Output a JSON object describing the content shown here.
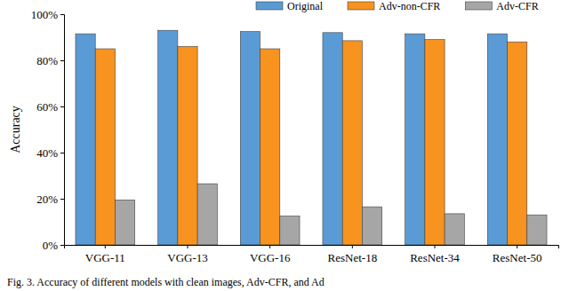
{
  "chart_data": {
    "type": "bar",
    "caption": "Fig. 3. Accuracy of different models with clean images, Adv-CFR, and Ad",
    "y_label": "Accuracy",
    "categories": [
      "VGG-11",
      "VGG-13",
      "VGG-16",
      "ResNet-18",
      "ResNet-34",
      "ResNet-50"
    ],
    "series": [
      {
        "name": "Original",
        "color": "#5b9bd5",
        "values": [
          91.5,
          93,
          92.5,
          92,
          91.5,
          91.5
        ]
      },
      {
        "name": "Adv-non-CFR",
        "color": "#f7931e",
        "values": [
          85,
          86,
          85,
          88.5,
          89,
          88
        ]
      },
      {
        "name": "Adv-CFR",
        "color": "#a6a6a6",
        "values": [
          19.5,
          26.5,
          12.5,
          16.5,
          13.5,
          13
        ]
      }
    ],
    "ylim": [
      0,
      100
    ],
    "yticks": [
      {
        "value": 0,
        "label": "0%"
      },
      {
        "value": 20,
        "label": "20%"
      },
      {
        "value": 40,
        "label": "40%"
      },
      {
        "value": 60,
        "label": "60%"
      },
      {
        "value": 80,
        "label": "80%"
      },
      {
        "value": 100,
        "label": "100%"
      }
    ],
    "grid": false,
    "legend": "top"
  }
}
